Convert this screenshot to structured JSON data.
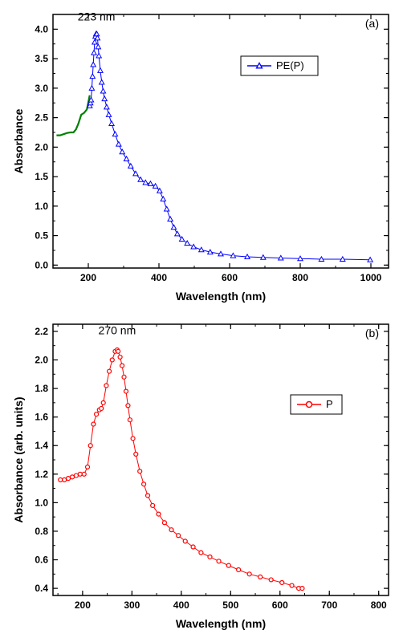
{
  "panel_a": {
    "type": "line",
    "label": "(a)",
    "peak_label": "223 nm",
    "peak_label_fontsize": 14,
    "xlabel": "Wavelength (nm)",
    "ylabel": "Absorbance",
    "label_fontsize": 14,
    "xlim": [
      100,
      1050
    ],
    "ylim": [
      -0.05,
      4.25
    ],
    "xtick_start": 200,
    "xtick_step": 200,
    "xtick_end": 1000,
    "ytick_start": 0.0,
    "ytick_step": 0.5,
    "ytick_end": 4.0,
    "tick_fontsize": 12,
    "background_color": "#ffffff",
    "axis_color": "#000000",
    "legend": {
      "label": "PE(P)",
      "color": "#0000ff",
      "marker": "triangle",
      "fontsize": 13
    },
    "series_green": {
      "color": "#008000",
      "line_width": 2.2,
      "data": [
        [
          110,
          2.2
        ],
        [
          120,
          2.2
        ],
        [
          130,
          2.22
        ],
        [
          140,
          2.24
        ],
        [
          150,
          2.25
        ],
        [
          158,
          2.25
        ],
        [
          165,
          2.3
        ],
        [
          172,
          2.4
        ],
        [
          180,
          2.55
        ],
        [
          188,
          2.58
        ],
        [
          196,
          2.64
        ],
        [
          204,
          2.88
        ]
      ]
    },
    "series_blue": {
      "color": "#0000ff",
      "line_width": 1.0,
      "marker": "triangle",
      "marker_size": 5,
      "data": [
        [
          204,
          2.7
        ],
        [
          206,
          2.75
        ],
        [
          208,
          2.8
        ],
        [
          210,
          3.0
        ],
        [
          212,
          3.2
        ],
        [
          214,
          3.4
        ],
        [
          216,
          3.6
        ],
        [
          218,
          3.78
        ],
        [
          220,
          3.88
        ],
        [
          222,
          3.92
        ],
        [
          224,
          3.92
        ],
        [
          226,
          3.85
        ],
        [
          228,
          3.7
        ],
        [
          230,
          3.55
        ],
        [
          234,
          3.3
        ],
        [
          238,
          3.1
        ],
        [
          242,
          2.95
        ],
        [
          246,
          2.82
        ],
        [
          252,
          2.68
        ],
        [
          258,
          2.55
        ],
        [
          266,
          2.4
        ],
        [
          276,
          2.22
        ],
        [
          286,
          2.05
        ],
        [
          296,
          1.92
        ],
        [
          308,
          1.8
        ],
        [
          320,
          1.68
        ],
        [
          334,
          1.55
        ],
        [
          348,
          1.45
        ],
        [
          362,
          1.4
        ],
        [
          376,
          1.38
        ],
        [
          390,
          1.34
        ],
        [
          402,
          1.26
        ],
        [
          412,
          1.12
        ],
        [
          422,
          0.95
        ],
        [
          432,
          0.78
        ],
        [
          442,
          0.64
        ],
        [
          452,
          0.53
        ],
        [
          465,
          0.44
        ],
        [
          480,
          0.37
        ],
        [
          498,
          0.31
        ],
        [
          520,
          0.26
        ],
        [
          545,
          0.22
        ],
        [
          575,
          0.19
        ],
        [
          610,
          0.16
        ],
        [
          650,
          0.14
        ],
        [
          695,
          0.13
        ],
        [
          745,
          0.12
        ],
        [
          800,
          0.11
        ],
        [
          860,
          0.1
        ],
        [
          920,
          0.1
        ],
        [
          998,
          0.09
        ]
      ]
    }
  },
  "panel_b": {
    "type": "line",
    "label": "(b)",
    "peak_label": "270 nm",
    "peak_label_fontsize": 14,
    "xlabel": "Wavelength (nm)",
    "ylabel": "Absorbance (arb. units)",
    "label_fontsize": 14,
    "xlim": [
      140,
      820
    ],
    "ylim": [
      0.35,
      2.25
    ],
    "xtick_start": 200,
    "xtick_step": 100,
    "xtick_end": 800,
    "ytick_start": 0.4,
    "ytick_step": 0.2,
    "ytick_end": 2.2,
    "tick_fontsize": 12,
    "background_color": "#ffffff",
    "axis_color": "#000000",
    "legend": {
      "label": "P",
      "color": "#ff0000",
      "marker": "circle",
      "fontsize": 13
    },
    "series_red": {
      "color": "#ff0000",
      "line_width": 1.0,
      "marker": "circle",
      "marker_size": 5,
      "data": [
        [
          155,
          1.16
        ],
        [
          163,
          1.16
        ],
        [
          171,
          1.17
        ],
        [
          179,
          1.18
        ],
        [
          187,
          1.19
        ],
        [
          195,
          1.2
        ],
        [
          203,
          1.2
        ],
        [
          210,
          1.25
        ],
        [
          216,
          1.4
        ],
        [
          222,
          1.55
        ],
        [
          228,
          1.62
        ],
        [
          234,
          1.65
        ],
        [
          238,
          1.66
        ],
        [
          242,
          1.7
        ],
        [
          248,
          1.82
        ],
        [
          254,
          1.92
        ],
        [
          260,
          2.0
        ],
        [
          266,
          2.06
        ],
        [
          270,
          2.07
        ],
        [
          272,
          2.06
        ],
        [
          276,
          2.02
        ],
        [
          280,
          1.96
        ],
        [
          284,
          1.88
        ],
        [
          288,
          1.78
        ],
        [
          292,
          1.68
        ],
        [
          296,
          1.58
        ],
        [
          302,
          1.45
        ],
        [
          308,
          1.34
        ],
        [
          316,
          1.22
        ],
        [
          324,
          1.13
        ],
        [
          332,
          1.05
        ],
        [
          342,
          0.98
        ],
        [
          354,
          0.92
        ],
        [
          366,
          0.86
        ],
        [
          380,
          0.81
        ],
        [
          394,
          0.77
        ],
        [
          408,
          0.73
        ],
        [
          424,
          0.69
        ],
        [
          440,
          0.65
        ],
        [
          458,
          0.62
        ],
        [
          476,
          0.59
        ],
        [
          496,
          0.56
        ],
        [
          516,
          0.53
        ],
        [
          538,
          0.5
        ],
        [
          560,
          0.48
        ],
        [
          582,
          0.46
        ],
        [
          604,
          0.44
        ],
        [
          624,
          0.42
        ],
        [
          638,
          0.4
        ],
        [
          645,
          0.4
        ]
      ]
    }
  }
}
